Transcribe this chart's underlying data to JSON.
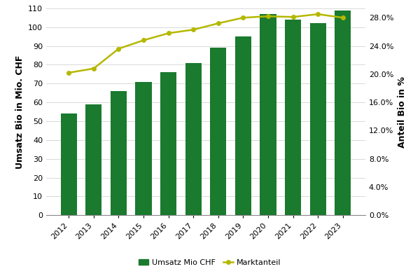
{
  "years": [
    2012,
    2013,
    2014,
    2015,
    2016,
    2017,
    2018,
    2019,
    2020,
    2021,
    2022,
    2023
  ],
  "umsatz": [
    54,
    59,
    66,
    71,
    76,
    81,
    89,
    95,
    107,
    104,
    102,
    109
  ],
  "marktanteil": [
    20.2,
    20.8,
    23.6,
    24.8,
    25.8,
    26.3,
    27.2,
    28.0,
    28.2,
    28.1,
    28.5,
    28.0
  ],
  "bar_color": "#1a7a2e",
  "line_color": "#b5b800",
  "background_color": "#ffffff",
  "ylabel_left": "Umsatz Bio in Mio. CHF",
  "ylabel_right": "Anteil Bio in %",
  "ylim_left": [
    0,
    110
  ],
  "ylim_right": [
    0,
    29.333
  ],
  "yticks_left": [
    0,
    10,
    20,
    30,
    40,
    50,
    60,
    70,
    80,
    90,
    100,
    110
  ],
  "yticks_right": [
    0.0,
    4.0,
    8.0,
    12.0,
    16.0,
    20.0,
    24.0,
    28.0
  ],
  "legend_bar_label": "Umsatz Mio CHF",
  "legend_line_label": "Marktanteil",
  "grid_color": "#d9d9d9",
  "tick_label_fontsize": 8,
  "axis_label_fontsize": 9
}
